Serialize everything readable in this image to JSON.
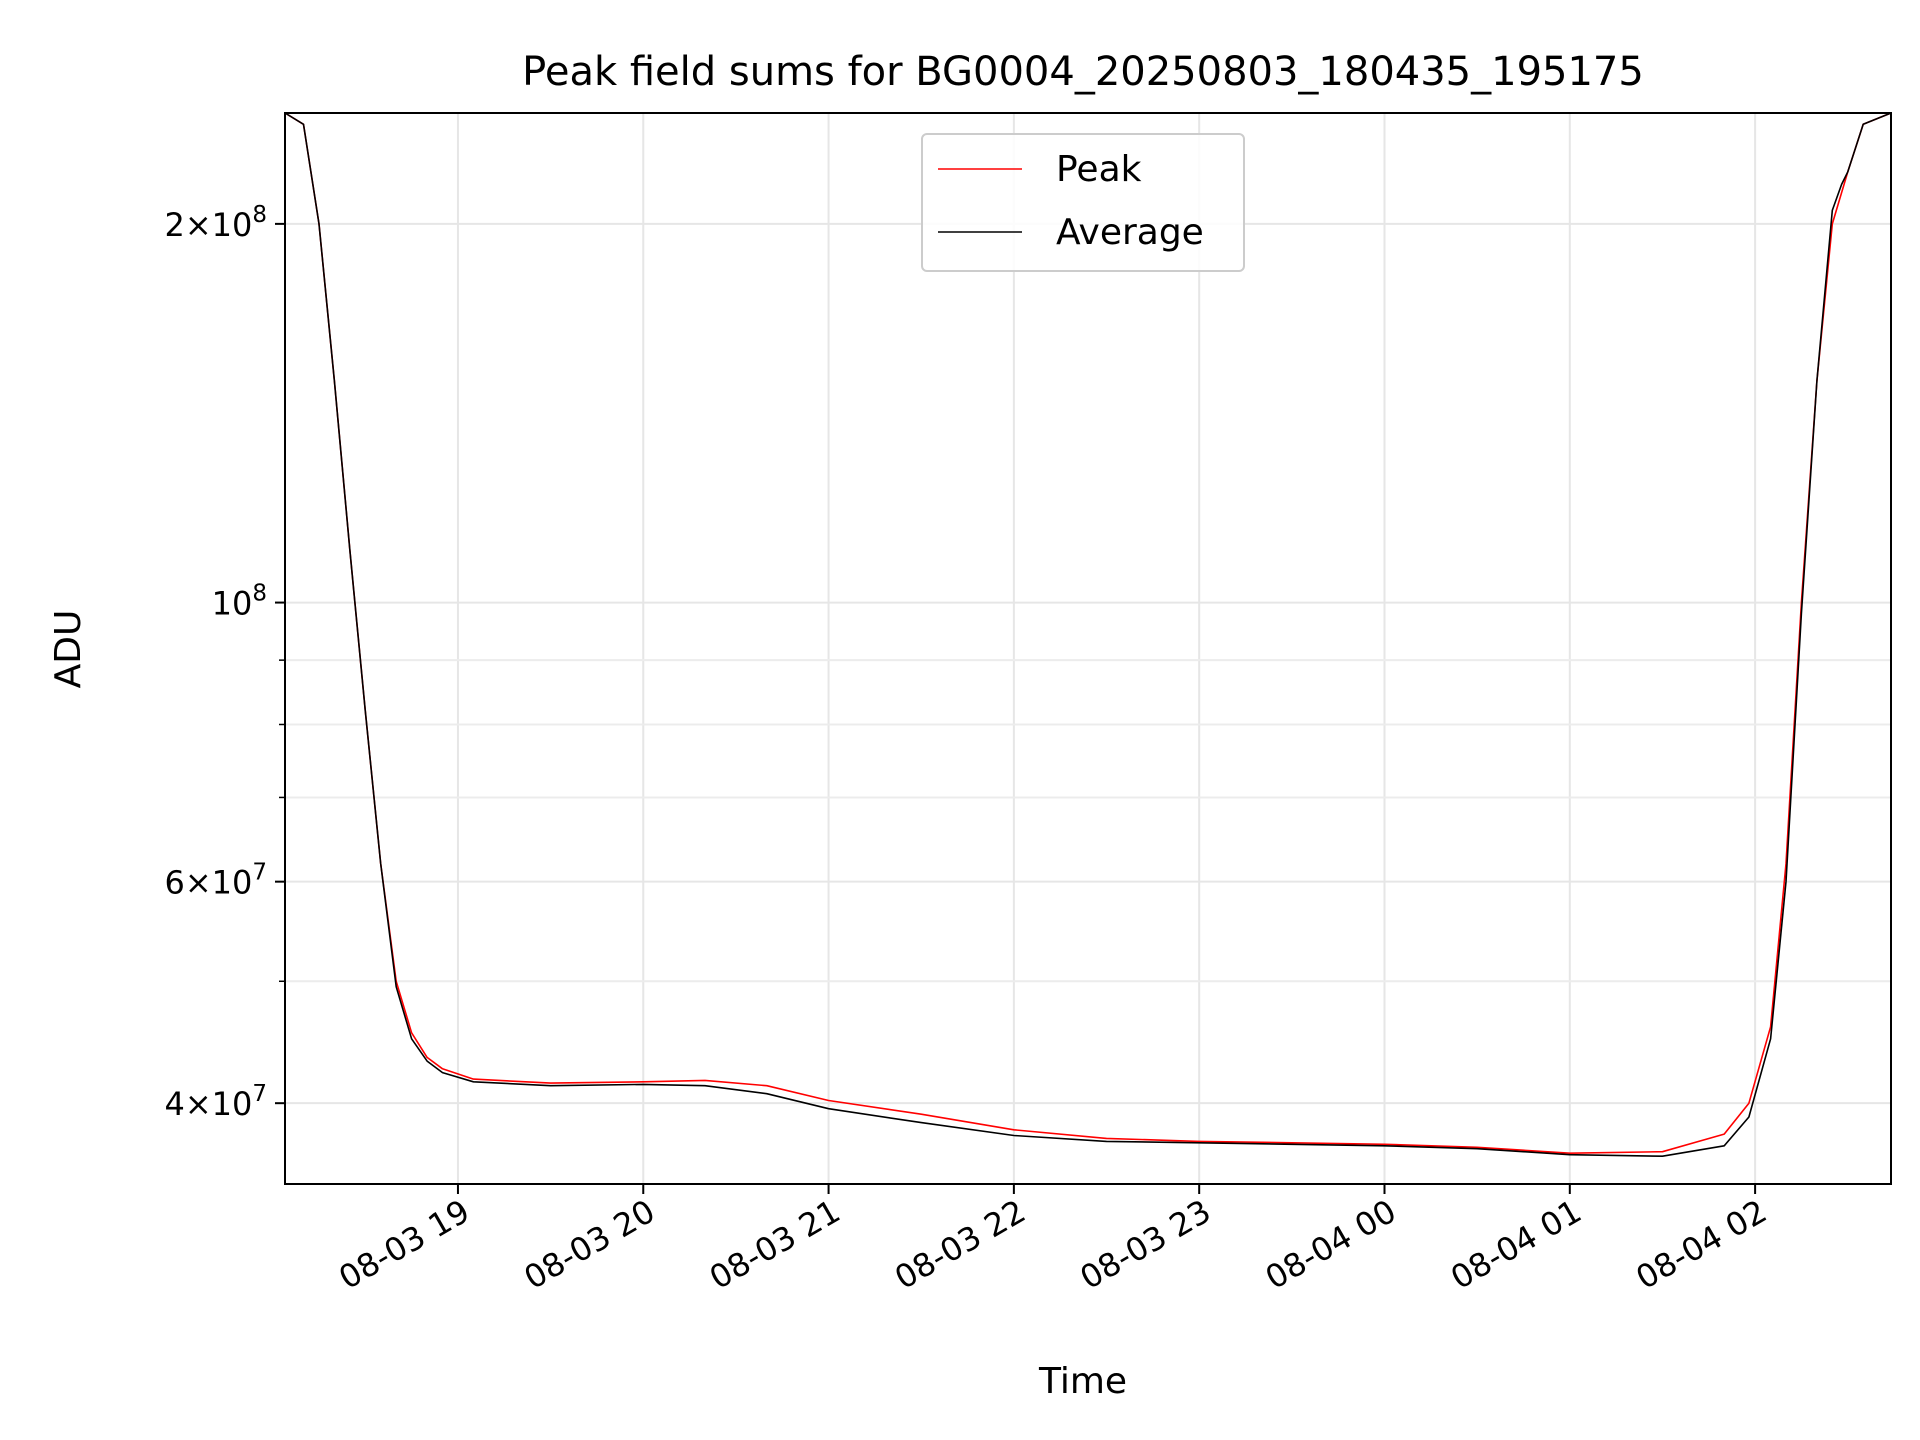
{
  "chart_data": {
    "type": "line",
    "title": "Peak field sums for BG0004_20250803_180435_195175",
    "xlabel": "Time",
    "ylabel": "ADU",
    "yscale": "log",
    "xlim": [
      "2025-08-03 18:04",
      "2025-08-04 02:44"
    ],
    "ylim": [
      34500000,
      245000000
    ],
    "grid": true,
    "legend_position": "upper center",
    "x_ticks": [
      {
        "t": "2025-08-03 19:00",
        "label": "08-03 19"
      },
      {
        "t": "2025-08-03 20:00",
        "label": "08-03 20"
      },
      {
        "t": "2025-08-03 21:00",
        "label": "08-03 21"
      },
      {
        "t": "2025-08-03 22:00",
        "label": "08-03 22"
      },
      {
        "t": "2025-08-03 23:00",
        "label": "08-03 23"
      },
      {
        "t": "2025-08-04 00:00",
        "label": "08-04 00"
      },
      {
        "t": "2025-08-04 01:00",
        "label": "08-04 01"
      },
      {
        "t": "2025-08-04 02:00",
        "label": "08-04 02"
      }
    ],
    "y_major_ticks": [
      {
        "value": 40000000,
        "mantissa": "4",
        "exponent": "7"
      },
      {
        "value": 60000000,
        "mantissa": "6",
        "exponent": "7"
      },
      {
        "value": 100000000,
        "mantissa": "",
        "exponent": "8"
      },
      {
        "value": 200000000,
        "mantissa": "2",
        "exponent": "8"
      }
    ],
    "y_minor_ticks": [
      50000000,
      70000000,
      80000000,
      90000000
    ],
    "series": [
      {
        "name": "Peak",
        "color": "#ff0000",
        "points": [
          [
            "2025-08-03 18:04",
            245000000
          ],
          [
            "2025-08-03 18:10",
            240000000
          ],
          [
            "2025-08-03 18:15",
            200000000
          ],
          [
            "2025-08-03 18:20",
            150000000
          ],
          [
            "2025-08-03 18:25",
            110000000
          ],
          [
            "2025-08-03 18:30",
            82000000
          ],
          [
            "2025-08-03 18:35",
            62000000
          ],
          [
            "2025-08-03 18:40",
            50000000
          ],
          [
            "2025-08-03 18:45",
            45500000
          ],
          [
            "2025-08-03 18:50",
            43500000
          ],
          [
            "2025-08-03 18:55",
            42600000
          ],
          [
            "2025-08-03 19:05",
            41800000
          ],
          [
            "2025-08-03 19:30",
            41500000
          ],
          [
            "2025-08-03 20:00",
            41600000
          ],
          [
            "2025-08-03 20:20",
            41700000
          ],
          [
            "2025-08-03 20:40",
            41300000
          ],
          [
            "2025-08-03 21:00",
            40200000
          ],
          [
            "2025-08-03 21:30",
            39200000
          ],
          [
            "2025-08-03 22:00",
            38100000
          ],
          [
            "2025-08-03 22:30",
            37500000
          ],
          [
            "2025-08-03 23:00",
            37300000
          ],
          [
            "2025-08-03 23:30",
            37200000
          ],
          [
            "2025-08-04 00:00",
            37100000
          ],
          [
            "2025-08-04 00:30",
            36900000
          ],
          [
            "2025-08-04 01:00",
            36500000
          ],
          [
            "2025-08-04 01:30",
            36600000
          ],
          [
            "2025-08-04 01:50",
            37800000
          ],
          [
            "2025-08-04 01:58",
            40000000
          ],
          [
            "2025-08-04 02:05",
            46000000
          ],
          [
            "2025-08-04 02:10",
            62000000
          ],
          [
            "2025-08-04 02:15",
            100000000
          ],
          [
            "2025-08-04 02:20",
            150000000
          ],
          [
            "2025-08-04 02:25",
            200000000
          ],
          [
            "2025-08-04 02:30",
            220000000
          ],
          [
            "2025-08-04 02:35",
            240000000
          ],
          [
            "2025-08-04 02:44",
            245000000
          ]
        ]
      },
      {
        "name": "Average",
        "color": "#000000",
        "points": [
          [
            "2025-08-03 18:04",
            245000000
          ],
          [
            "2025-08-03 18:10",
            240000000
          ],
          [
            "2025-08-03 18:15",
            200000000
          ],
          [
            "2025-08-03 18:20",
            150000000
          ],
          [
            "2025-08-03 18:25",
            110000000
          ],
          [
            "2025-08-03 18:30",
            82000000
          ],
          [
            "2025-08-03 18:35",
            62000000
          ],
          [
            "2025-08-03 18:40",
            49500000
          ],
          [
            "2025-08-03 18:45",
            45000000
          ],
          [
            "2025-08-03 18:50",
            43200000
          ],
          [
            "2025-08-03 18:55",
            42300000
          ],
          [
            "2025-08-03 19:05",
            41600000
          ],
          [
            "2025-08-03 19:30",
            41300000
          ],
          [
            "2025-08-03 20:00",
            41400000
          ],
          [
            "2025-08-03 20:20",
            41300000
          ],
          [
            "2025-08-03 20:40",
            40700000
          ],
          [
            "2025-08-03 21:00",
            39600000
          ],
          [
            "2025-08-03 21:30",
            38600000
          ],
          [
            "2025-08-03 22:00",
            37700000
          ],
          [
            "2025-08-03 22:30",
            37300000
          ],
          [
            "2025-08-03 23:00",
            37200000
          ],
          [
            "2025-08-03 23:30",
            37100000
          ],
          [
            "2025-08-04 00:00",
            37000000
          ],
          [
            "2025-08-04 00:30",
            36800000
          ],
          [
            "2025-08-04 01:00",
            36400000
          ],
          [
            "2025-08-04 01:30",
            36300000
          ],
          [
            "2025-08-04 01:50",
            37000000
          ],
          [
            "2025-08-04 01:58",
            39000000
          ],
          [
            "2025-08-04 02:05",
            45000000
          ],
          [
            "2025-08-04 02:10",
            60000000
          ],
          [
            "2025-08-04 02:15",
            98000000
          ],
          [
            "2025-08-04 02:20",
            150000000
          ],
          [
            "2025-08-04 02:25",
            205000000
          ],
          [
            "2025-08-04 02:28",
            215000000
          ],
          [
            "2025-08-04 02:30",
            220000000
          ],
          [
            "2025-08-04 02:35",
            240000000
          ],
          [
            "2025-08-04 02:44",
            245000000
          ]
        ]
      }
    ]
  }
}
